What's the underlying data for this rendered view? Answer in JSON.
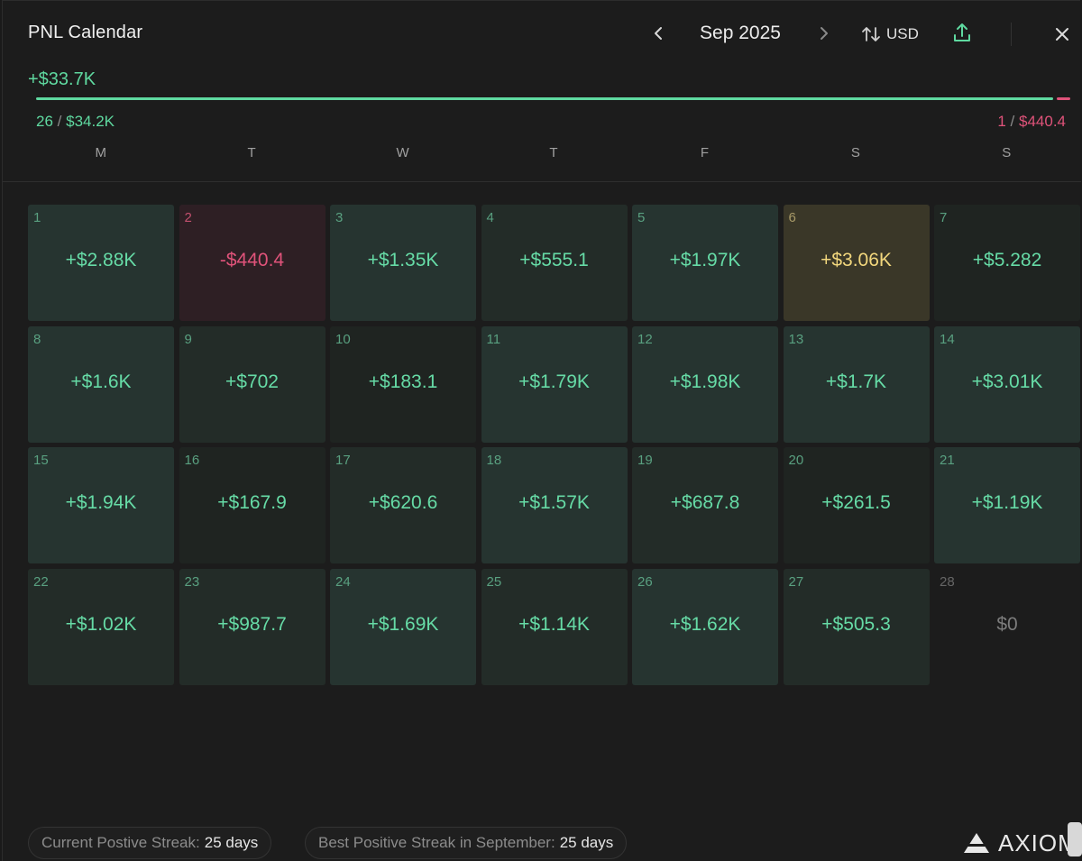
{
  "header": {
    "title": "PNL Calendar",
    "month": "Sep 2025",
    "currency": "USD",
    "prev_icon": "chevron-left-icon",
    "next_icon": "chevron-right-icon",
    "currency_icon": "swap-vertical-icon",
    "export_icon": "upload-icon",
    "close_icon": "close-icon"
  },
  "summary": {
    "total": "+$33.7K",
    "wins_count": "26",
    "wins_amount": "$34.2K",
    "losses_count": "1",
    "losses_amount": "$440.4",
    "separator": "/",
    "positive_fraction": 0.987
  },
  "weekdays": [
    "M",
    "T",
    "W",
    "T",
    "F",
    "S",
    "S"
  ],
  "days": [
    {
      "day": "1",
      "value": "+$2.88K",
      "kind": "pos",
      "level": "high"
    },
    {
      "day": "2",
      "value": "-$440.4",
      "kind": "neg",
      "level": "neg"
    },
    {
      "day": "3",
      "value": "+$1.35K",
      "kind": "pos",
      "level": "high"
    },
    {
      "day": "4",
      "value": "+$555.1",
      "kind": "pos",
      "level": "mid"
    },
    {
      "day": "5",
      "value": "+$1.97K",
      "kind": "pos",
      "level": "high"
    },
    {
      "day": "6",
      "value": "+$3.06K",
      "kind": "best",
      "level": "best"
    },
    {
      "day": "7",
      "value": "+$5.282",
      "kind": "pos",
      "level": "low"
    },
    {
      "day": "8",
      "value": "+$1.6K",
      "kind": "pos",
      "level": "high"
    },
    {
      "day": "9",
      "value": "+$702",
      "kind": "pos",
      "level": "mid"
    },
    {
      "day": "10",
      "value": "+$183.1",
      "kind": "pos",
      "level": "low"
    },
    {
      "day": "11",
      "value": "+$1.79K",
      "kind": "pos",
      "level": "high"
    },
    {
      "day": "12",
      "value": "+$1.98K",
      "kind": "pos",
      "level": "high"
    },
    {
      "day": "13",
      "value": "+$1.7K",
      "kind": "pos",
      "level": "high"
    },
    {
      "day": "14",
      "value": "+$3.01K",
      "kind": "pos",
      "level": "high"
    },
    {
      "day": "15",
      "value": "+$1.94K",
      "kind": "pos",
      "level": "high"
    },
    {
      "day": "16",
      "value": "+$167.9",
      "kind": "pos",
      "level": "low"
    },
    {
      "day": "17",
      "value": "+$620.6",
      "kind": "pos",
      "level": "mid"
    },
    {
      "day": "18",
      "value": "+$1.57K",
      "kind": "pos",
      "level": "high"
    },
    {
      "day": "19",
      "value": "+$687.8",
      "kind": "pos",
      "level": "mid"
    },
    {
      "day": "20",
      "value": "+$261.5",
      "kind": "pos",
      "level": "low"
    },
    {
      "day": "21",
      "value": "+$1.19K",
      "kind": "pos",
      "level": "high"
    },
    {
      "day": "22",
      "value": "+$1.02K",
      "kind": "pos",
      "level": "mid"
    },
    {
      "day": "23",
      "value": "+$987.7",
      "kind": "pos",
      "level": "mid"
    },
    {
      "day": "24",
      "value": "+$1.69K",
      "kind": "pos",
      "level": "high"
    },
    {
      "day": "25",
      "value": "+$1.14K",
      "kind": "pos",
      "level": "mid"
    },
    {
      "day": "26",
      "value": "+$1.62K",
      "kind": "pos",
      "level": "high"
    },
    {
      "day": "27",
      "value": "+$505.3",
      "kind": "pos",
      "level": "mid"
    },
    {
      "day": "28",
      "value": "$0",
      "kind": "zero",
      "level": "empty"
    }
  ],
  "footer": {
    "current_streak_label": "Current Postive Streak:",
    "current_streak_value": "25 days",
    "best_streak_label": "Best Positive Streak in September:",
    "best_streak_value": "25 days",
    "brand": "AXIOM",
    "brand_icon": "axiom-logo-icon"
  },
  "colors": {
    "positive": "#5fd9a0",
    "negative": "#e0537a",
    "best": "#f2d77d",
    "background": "#1c1c1c"
  }
}
